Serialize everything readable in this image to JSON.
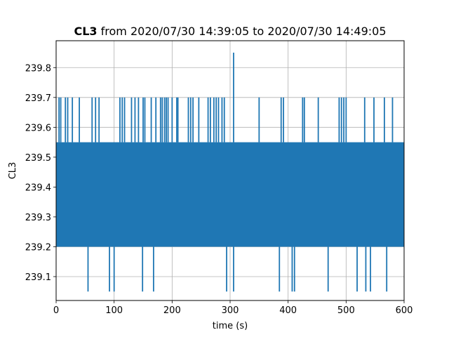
{
  "chart_data": {
    "type": "line",
    "title_bold": "CL3",
    "title_rest": " from 2020/07/30 14:39:05 to 2020/07/30 14:49:05",
    "xlabel": "time (s)",
    "ylabel": "CL3",
    "xlim": [
      0,
      600
    ],
    "ylim": [
      239.02,
      239.89
    ],
    "xticks": [
      0,
      100,
      200,
      300,
      400,
      500,
      600
    ],
    "yticks": [
      239.1,
      239.2,
      239.3,
      239.4,
      239.5,
      239.6,
      239.7,
      239.8
    ],
    "ytick_labels": [
      "239.1",
      "239.2",
      "239.3",
      "239.4",
      "239.5",
      "239.6",
      "239.7",
      "239.8"
    ],
    "grid": true,
    "color": "#1f77b4",
    "band": {
      "low": 239.2,
      "high": 239.55,
      "x_start": 0,
      "x_end": 600
    },
    "series": [
      {
        "values_note_free": true,
        "up_spikes_239_7": [
          5,
          8,
          16,
          20,
          28,
          40,
          62,
          68,
          74,
          110,
          114,
          118,
          130,
          136,
          142,
          150,
          153,
          164,
          172,
          180,
          183,
          187,
          190,
          193,
          200,
          208,
          210,
          228,
          232,
          236,
          246,
          262,
          266,
          272,
          276,
          280,
          286,
          290,
          350,
          388,
          392,
          425,
          428,
          452,
          488,
          492,
          496,
          500,
          532,
          548,
          566,
          580
        ],
        "up_spikes_239_85": [
          306
        ],
        "down_spikes_239_05": [
          55,
          92,
          100,
          149,
          168,
          294,
          306,
          385,
          407,
          411,
          469,
          519,
          534,
          542,
          570
        ]
      }
    ]
  }
}
